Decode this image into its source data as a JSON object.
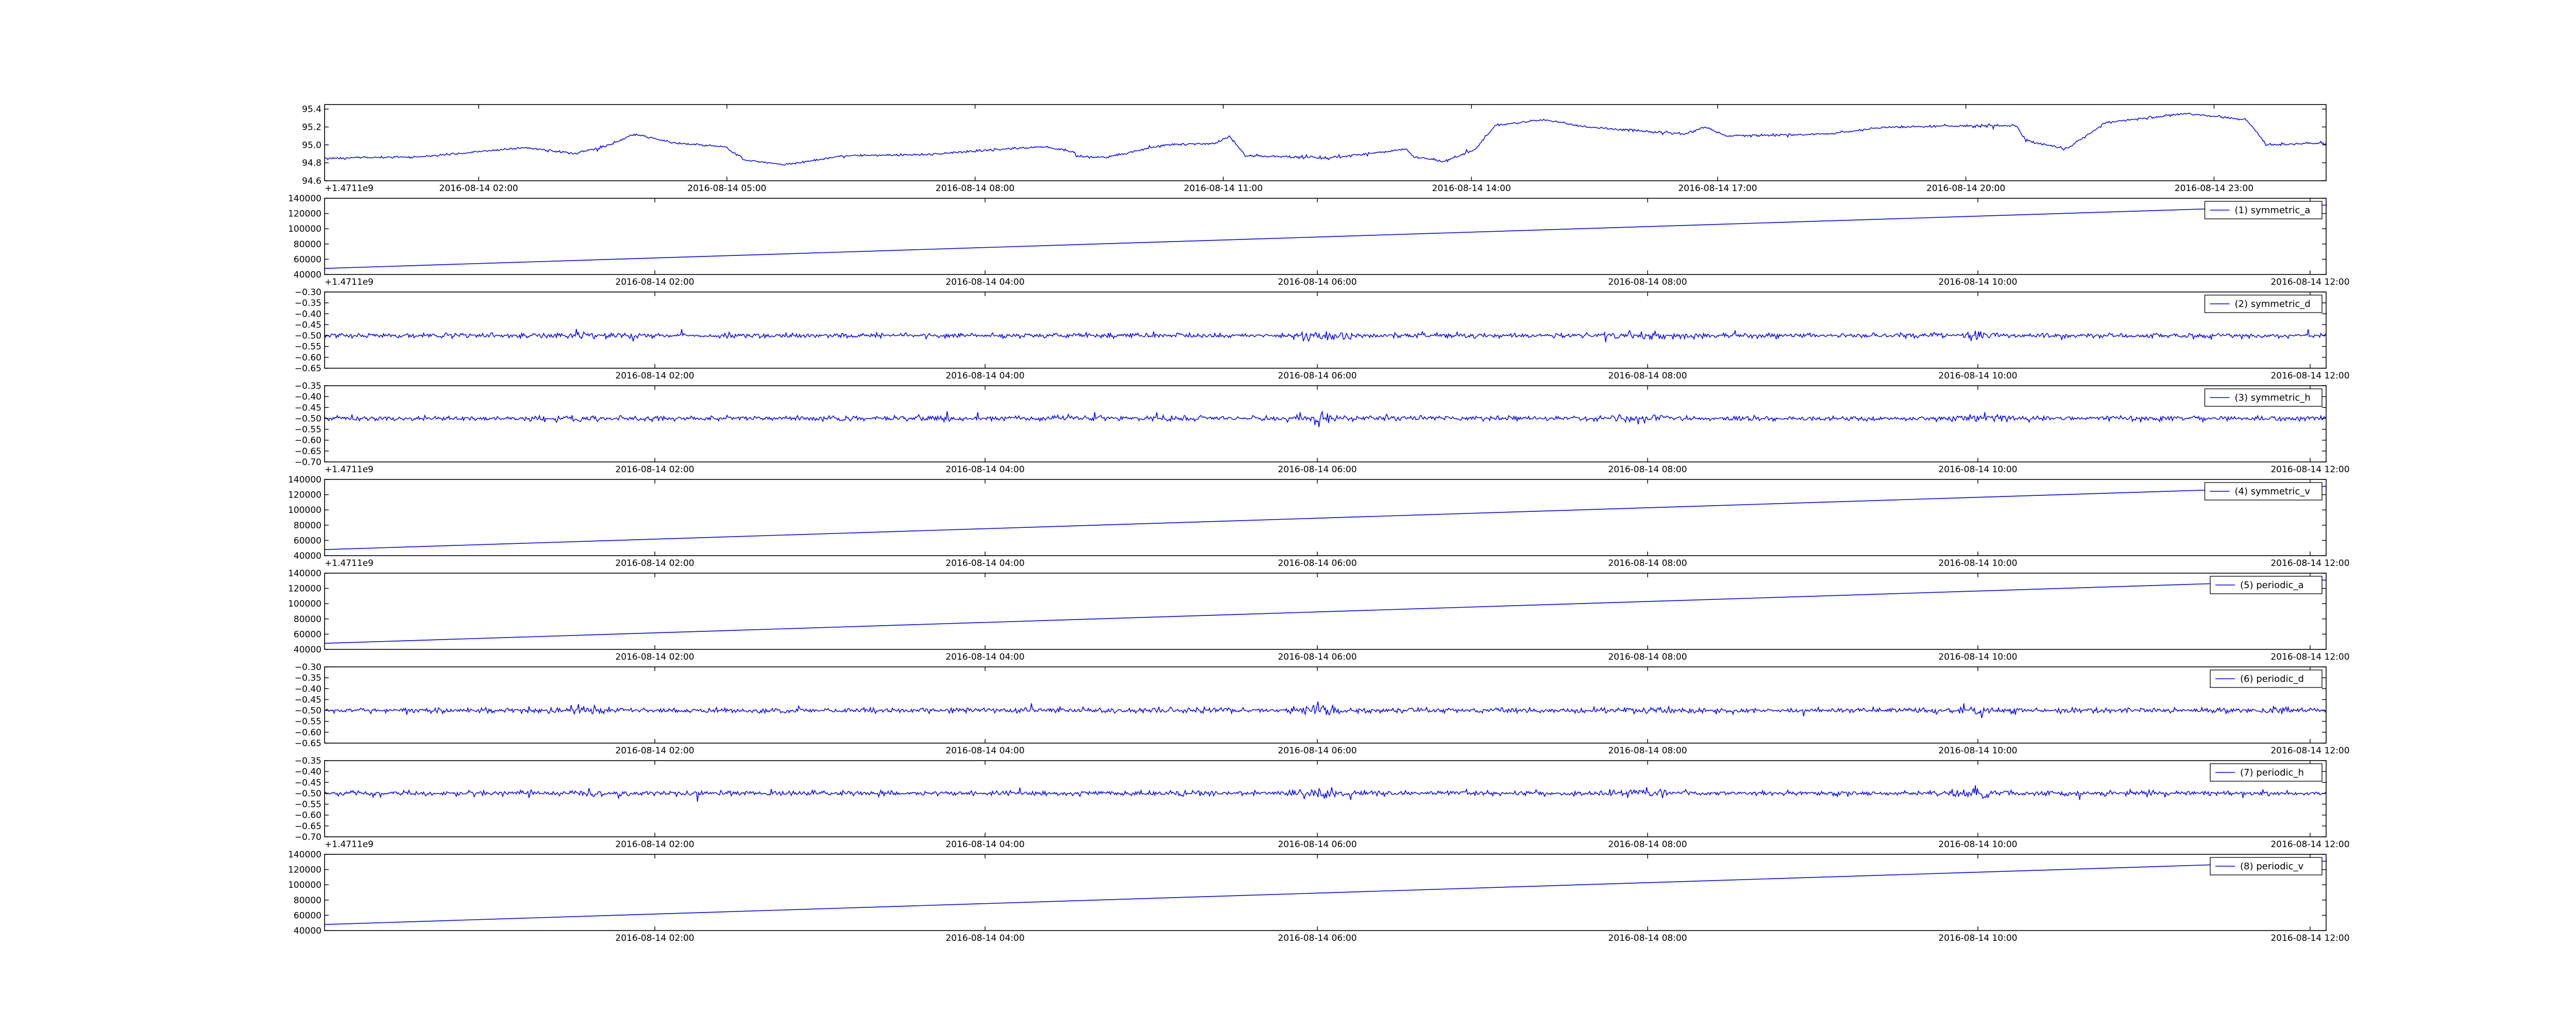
{
  "figure": {
    "background": "#ffffff",
    "line_color": "#0000ff"
  },
  "chart_data": [
    {
      "type": "line",
      "title": "",
      "xlabel": "",
      "ylabel": "",
      "x_ticks": [
        "2016-08-14 02:00",
        "2016-08-14 05:00",
        "2016-08-14 08:00",
        "2016-08-14 11:00",
        "2016-08-14 14:00",
        "2016-08-14 17:00",
        "2016-08-14 20:00",
        "2016-08-14 23:00"
      ],
      "x_tick_fracs": [
        0.077,
        0.201,
        0.325,
        0.449,
        0.573,
        0.696,
        0.82,
        0.944
      ],
      "y_ticks": [
        "94.6",
        "94.8",
        "95.0",
        "95.2",
        "95.4"
      ],
      "ylim": [
        94.6,
        95.45
      ],
      "offset_text": "+1.4711e9",
      "legend": null,
      "grid": false,
      "series": [
        {
          "kind": "noisy",
          "level_points": [
            [
              0,
              94.85
            ],
            [
              0.05,
              94.87
            ],
            [
              0.1,
              94.97
            ],
            [
              0.125,
              94.9
            ],
            [
              0.14,
              94.98
            ],
            [
              0.155,
              95.12
            ],
            [
              0.175,
              95.02
            ],
            [
              0.2,
              94.98
            ],
            [
              0.21,
              94.83
            ],
            [
              0.23,
              94.78
            ],
            [
              0.26,
              94.88
            ],
            [
              0.3,
              94.89
            ],
            [
              0.33,
              94.94
            ],
            [
              0.36,
              94.98
            ],
            [
              0.375,
              94.92
            ],
            [
              0.37,
              94.88
            ],
            [
              0.39,
              94.86
            ],
            [
              0.42,
              95.0
            ],
            [
              0.445,
              95.02
            ],
            [
              0.452,
              95.1
            ],
            [
              0.46,
              94.88
            ],
            [
              0.5,
              94.85
            ],
            [
              0.54,
              94.95
            ],
            [
              0.545,
              94.86
            ],
            [
              0.56,
              94.82
            ],
            [
              0.575,
              94.95
            ],
            [
              0.585,
              95.22
            ],
            [
              0.61,
              95.28
            ],
            [
              0.63,
              95.2
            ],
            [
              0.68,
              95.12
            ],
            [
              0.69,
              95.2
            ],
            [
              0.7,
              95.1
            ],
            [
              0.75,
              95.12
            ],
            [
              0.78,
              95.2
            ],
            [
              0.845,
              95.22
            ],
            [
              0.85,
              95.05
            ],
            [
              0.87,
              94.95
            ],
            [
              0.89,
              95.25
            ],
            [
              0.93,
              95.35
            ],
            [
              0.96,
              95.28
            ],
            [
              0.965,
              95.15
            ],
            [
              0.97,
              95.0
            ],
            [
              1,
              95.02
            ]
          ],
          "noise": 0.02
        }
      ]
    },
    {
      "type": "line",
      "title": "",
      "xlabel": "",
      "ylabel": "",
      "x_ticks": [
        "2016-08-14 02:00",
        "2016-08-14 04:00",
        "2016-08-14 06:00",
        "2016-08-14 08:00",
        "2016-08-14 10:00",
        "2016-08-14 12:00"
      ],
      "x_tick_fracs": [
        0.165,
        0.33,
        0.496,
        0.661,
        0.826,
        0.992
      ],
      "y_ticks": [
        "40000",
        "60000",
        "80000",
        "100000",
        "120000",
        "140000"
      ],
      "ylim": [
        40000,
        140000
      ],
      "offset_text": "+1.4711e9",
      "legend": "(1) symmetric_a",
      "grid": false,
      "series": [
        {
          "kind": "linear",
          "name": "(1) symmetric_a",
          "start": 48000,
          "end": 131000
        }
      ]
    },
    {
      "type": "line",
      "title": "",
      "xlabel": "",
      "ylabel": "",
      "x_ticks": [
        "2016-08-14 02:00",
        "2016-08-14 04:00",
        "2016-08-14 06:00",
        "2016-08-14 08:00",
        "2016-08-14 10:00",
        "2016-08-14 12:00"
      ],
      "x_tick_fracs": [
        0.165,
        0.33,
        0.496,
        0.661,
        0.826,
        0.992
      ],
      "y_ticks": [
        "−0.65",
        "−0.60",
        "−0.55",
        "−0.50",
        "−0.45",
        "−0.40",
        "−0.35",
        "−0.30"
      ],
      "ylim": [
        -0.65,
        -0.3
      ],
      "offset_text": "",
      "legend": "(2) symmetric_d",
      "grid": false,
      "series": [
        {
          "kind": "noisy",
          "name": "(2) symmetric_d",
          "level_points": [
            [
              0,
              -0.5
            ],
            [
              1,
              -0.5
            ]
          ],
          "noise": 0.045
        }
      ]
    },
    {
      "type": "line",
      "title": "",
      "xlabel": "",
      "ylabel": "",
      "x_ticks": [
        "2016-08-14 02:00",
        "2016-08-14 04:00",
        "2016-08-14 06:00",
        "2016-08-14 08:00",
        "2016-08-14 10:00",
        "2016-08-14 12:00"
      ],
      "x_tick_fracs": [
        0.165,
        0.33,
        0.496,
        0.661,
        0.826,
        0.992
      ],
      "y_ticks": [
        "−0.70",
        "−0.65",
        "−0.60",
        "−0.55",
        "−0.50",
        "−0.45",
        "−0.40",
        "−0.35"
      ],
      "ylim": [
        -0.7,
        -0.35
      ],
      "offset_text": "+1.4711e9",
      "legend": "(3) symmetric_h",
      "grid": false,
      "series": [
        {
          "kind": "noisy",
          "name": "(3) symmetric_h",
          "level_points": [
            [
              0,
              -0.5
            ],
            [
              1,
              -0.5
            ]
          ],
          "noise": 0.045
        }
      ]
    },
    {
      "type": "line",
      "title": "",
      "xlabel": "",
      "ylabel": "",
      "x_ticks": [
        "2016-08-14 02:00",
        "2016-08-14 04:00",
        "2016-08-14 06:00",
        "2016-08-14 08:00",
        "2016-08-14 10:00",
        "2016-08-14 12:00"
      ],
      "x_tick_fracs": [
        0.165,
        0.33,
        0.496,
        0.661,
        0.826,
        0.992
      ],
      "y_ticks": [
        "40000",
        "60000",
        "80000",
        "100000",
        "120000",
        "140000"
      ],
      "ylim": [
        40000,
        140000
      ],
      "offset_text": "+1.4711e9",
      "legend": "(4) symmetric_v",
      "grid": false,
      "series": [
        {
          "kind": "linear",
          "name": "(4) symmetric_v",
          "start": 48000,
          "end": 131000
        }
      ]
    },
    {
      "type": "line",
      "title": "",
      "xlabel": "",
      "ylabel": "",
      "x_ticks": [
        "2016-08-14 02:00",
        "2016-08-14 04:00",
        "2016-08-14 06:00",
        "2016-08-14 08:00",
        "2016-08-14 10:00",
        "2016-08-14 12:00"
      ],
      "x_tick_fracs": [
        0.165,
        0.33,
        0.496,
        0.661,
        0.826,
        0.992
      ],
      "y_ticks": [
        "40000",
        "60000",
        "80000",
        "100000",
        "120000",
        "140000"
      ],
      "ylim": [
        40000,
        140000
      ],
      "offset_text": "",
      "legend": "(5) periodic_a",
      "grid": false,
      "series": [
        {
          "kind": "linear",
          "name": "(5) periodic_a",
          "start": 48000,
          "end": 131000
        }
      ]
    },
    {
      "type": "line",
      "title": "",
      "xlabel": "",
      "ylabel": "",
      "x_ticks": [
        "2016-08-14 02:00",
        "2016-08-14 04:00",
        "2016-08-14 06:00",
        "2016-08-14 08:00",
        "2016-08-14 10:00",
        "2016-08-14 12:00"
      ],
      "x_tick_fracs": [
        0.165,
        0.33,
        0.496,
        0.661,
        0.826,
        0.992
      ],
      "y_ticks": [
        "−0.65",
        "−0.60",
        "−0.55",
        "−0.50",
        "−0.45",
        "−0.40",
        "−0.35",
        "−0.30"
      ],
      "ylim": [
        -0.65,
        -0.3
      ],
      "offset_text": "",
      "legend": "(6) periodic_d",
      "grid": false,
      "series": [
        {
          "kind": "noisy",
          "name": "(6) periodic_d",
          "level_points": [
            [
              0,
              -0.5
            ],
            [
              1,
              -0.5
            ]
          ],
          "noise": 0.045
        }
      ]
    },
    {
      "type": "line",
      "title": "",
      "xlabel": "",
      "ylabel": "",
      "x_ticks": [
        "2016-08-14 02:00",
        "2016-08-14 04:00",
        "2016-08-14 06:00",
        "2016-08-14 08:00",
        "2016-08-14 10:00",
        "2016-08-14 12:00"
      ],
      "x_tick_fracs": [
        0.165,
        0.33,
        0.496,
        0.661,
        0.826,
        0.992
      ],
      "y_ticks": [
        "−0.70",
        "−0.65",
        "−0.60",
        "−0.55",
        "−0.50",
        "−0.45",
        "−0.40",
        "−0.35"
      ],
      "ylim": [
        -0.7,
        -0.35
      ],
      "offset_text": "+1.4711e9",
      "legend": "(7) periodic_h",
      "grid": false,
      "series": [
        {
          "kind": "noisy",
          "name": "(7) periodic_h",
          "level_points": [
            [
              0,
              -0.5
            ],
            [
              1,
              -0.5
            ]
          ],
          "noise": 0.045
        }
      ]
    },
    {
      "type": "line",
      "title": "",
      "xlabel": "",
      "ylabel": "",
      "x_ticks": [
        "2016-08-14 02:00",
        "2016-08-14 04:00",
        "2016-08-14 06:00",
        "2016-08-14 08:00",
        "2016-08-14 10:00",
        "2016-08-14 12:00"
      ],
      "x_tick_fracs": [
        0.165,
        0.33,
        0.496,
        0.661,
        0.826,
        0.992
      ],
      "y_ticks": [
        "40000",
        "60000",
        "80000",
        "100000",
        "120000",
        "140000"
      ],
      "ylim": [
        40000,
        140000
      ],
      "offset_text": "",
      "legend": "(8) periodic_v",
      "grid": false,
      "series": [
        {
          "kind": "linear",
          "name": "(8) periodic_v",
          "start": 48000,
          "end": 131000
        }
      ]
    }
  ]
}
